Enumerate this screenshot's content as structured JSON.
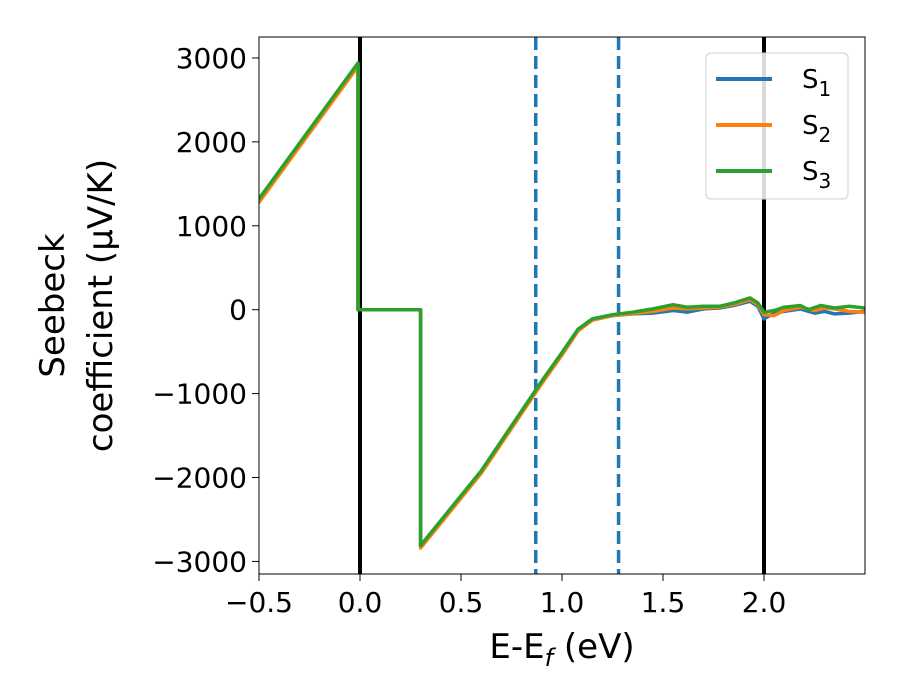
{
  "chart_data": {
    "type": "line",
    "xlabel": "E-E",
    "xlabel_sub": "f",
    "xlabel_unit": " (eV)",
    "ylabel_line1": "Seebeck",
    "ylabel_line2": "coefficient  (μV/K)",
    "xlim": [
      -0.5,
      2.5
    ],
    "ylim": [
      -3150,
      3250
    ],
    "x_ticks": [
      -0.5,
      0.0,
      0.5,
      1.0,
      1.5,
      2.0
    ],
    "x_tick_labels": [
      "−0.5",
      "0.0",
      "0.5",
      "1.0",
      "1.5",
      "2.0"
    ],
    "y_ticks": [
      3000,
      2000,
      1000,
      0,
      -1000,
      -2000,
      -3000
    ],
    "y_tick_labels": [
      "3000",
      "2000",
      "1000",
      "0",
      "−1000",
      "−2000",
      "−3000"
    ],
    "grid": false,
    "legend_position": "top-right",
    "vertical_lines": [
      {
        "x": 0.0,
        "style": "solid",
        "color": "#000000"
      },
      {
        "x": 2.0,
        "style": "solid",
        "color": "#000000"
      },
      {
        "x": 0.87,
        "style": "dashed",
        "color": "#1f77b4"
      },
      {
        "x": 1.28,
        "style": "dashed",
        "color": "#1f77b4"
      }
    ],
    "series": [
      {
        "name": "S",
        "sub": "1",
        "color": "#1f77b4",
        "points": [
          [
            -0.5,
            1300
          ],
          [
            -0.01,
            2920
          ],
          [
            -0.01,
            0
          ],
          [
            0.3,
            0
          ],
          [
            0.3,
            -2820
          ],
          [
            0.6,
            -1930
          ],
          [
            0.9,
            -860
          ],
          [
            1.0,
            -520
          ],
          [
            1.08,
            -240
          ],
          [
            1.15,
            -120
          ],
          [
            1.25,
            -70
          ],
          [
            1.35,
            -50
          ],
          [
            1.45,
            -40
          ],
          [
            1.55,
            -10
          ],
          [
            1.62,
            -30
          ],
          [
            1.7,
            10
          ],
          [
            1.78,
            20
          ],
          [
            1.85,
            50
          ],
          [
            1.93,
            100
          ],
          [
            1.97,
            40
          ],
          [
            2.0,
            -110
          ],
          [
            2.05,
            -40
          ],
          [
            2.1,
            -20
          ],
          [
            2.18,
            10
          ],
          [
            2.25,
            -40
          ],
          [
            2.3,
            -20
          ],
          [
            2.35,
            -50
          ],
          [
            2.42,
            -40
          ],
          [
            2.5,
            -20
          ]
        ]
      },
      {
        "name": "S",
        "sub": "2",
        "color": "#ff7f0e",
        "points": [
          [
            -0.5,
            1280
          ],
          [
            -0.01,
            2900
          ],
          [
            -0.01,
            0
          ],
          [
            0.3,
            0
          ],
          [
            0.3,
            -2840
          ],
          [
            0.6,
            -1950
          ],
          [
            0.9,
            -880
          ],
          [
            1.0,
            -540
          ],
          [
            1.08,
            -250
          ],
          [
            1.15,
            -125
          ],
          [
            1.25,
            -70
          ],
          [
            1.35,
            -45
          ],
          [
            1.45,
            -20
          ],
          [
            1.55,
            20
          ],
          [
            1.62,
            10
          ],
          [
            1.7,
            20
          ],
          [
            1.78,
            30
          ],
          [
            1.85,
            60
          ],
          [
            1.93,
            120
          ],
          [
            1.97,
            60
          ],
          [
            2.0,
            -60
          ],
          [
            2.05,
            -70
          ],
          [
            2.1,
            -10
          ],
          [
            2.18,
            30
          ],
          [
            2.25,
            -10
          ],
          [
            2.3,
            20
          ],
          [
            2.35,
            10
          ],
          [
            2.42,
            -20
          ],
          [
            2.5,
            -30
          ]
        ]
      },
      {
        "name": "S",
        "sub": "3",
        "color": "#2ca02c",
        "points": [
          [
            -0.5,
            1320
          ],
          [
            -0.01,
            2940
          ],
          [
            -0.01,
            0
          ],
          [
            0.3,
            0
          ],
          [
            0.3,
            -2810
          ],
          [
            0.6,
            -1920
          ],
          [
            0.9,
            -850
          ],
          [
            1.0,
            -510
          ],
          [
            1.08,
            -230
          ],
          [
            1.15,
            -110
          ],
          [
            1.25,
            -60
          ],
          [
            1.35,
            -30
          ],
          [
            1.45,
            10
          ],
          [
            1.55,
            60
          ],
          [
            1.62,
            30
          ],
          [
            1.7,
            40
          ],
          [
            1.78,
            40
          ],
          [
            1.85,
            80
          ],
          [
            1.93,
            140
          ],
          [
            1.97,
            80
          ],
          [
            2.0,
            -30
          ],
          [
            2.05,
            -10
          ],
          [
            2.1,
            30
          ],
          [
            2.18,
            50
          ],
          [
            2.22,
            0
          ],
          [
            2.28,
            50
          ],
          [
            2.35,
            20
          ],
          [
            2.42,
            40
          ],
          [
            2.5,
            20
          ]
        ]
      }
    ]
  }
}
